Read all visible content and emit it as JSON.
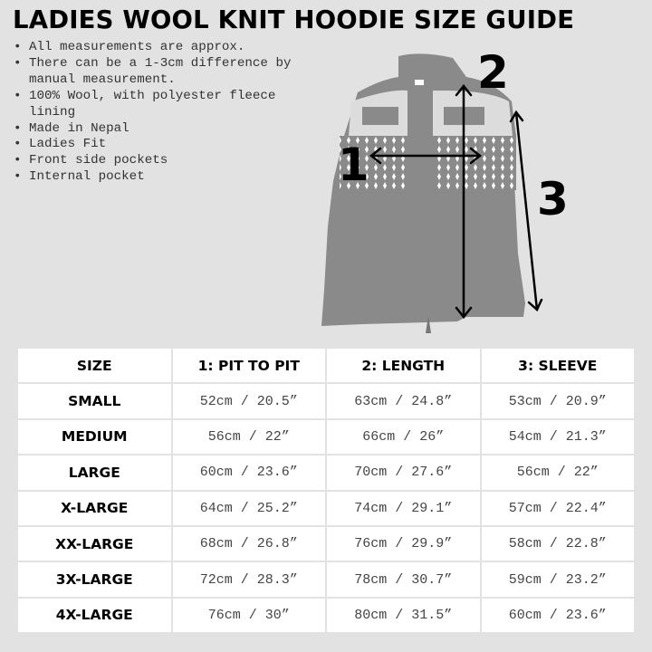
{
  "title": "LADIES WOOL KNIT HOODIE SIZE GUIDE",
  "notes": [
    "All measurements are approx.",
    "There can be a 1-3cm difference by manual measurement.",
    "100% Wool, with polyester fleece lining",
    "Made in Nepal",
    "Ladies Fit",
    "Front side pockets",
    "Internal pocket"
  ],
  "diagram": {
    "label_1": "1",
    "label_2": "2",
    "label_3": "3"
  },
  "table": {
    "headers": [
      "SIZE",
      "1: PIT TO PIT",
      "2: LENGTH",
      "3: SLEEVE"
    ],
    "rows": [
      [
        "SMALL",
        "52cm / 20.5”",
        "63cm / 24.8”",
        "53cm / 20.9”"
      ],
      [
        "MEDIUM",
        "56cm / 22”",
        "66cm / 26”",
        "54cm / 21.3”"
      ],
      [
        "LARGE",
        "60cm / 23.6”",
        "70cm / 27.6”",
        "56cm / 22”"
      ],
      [
        "X-LARGE",
        "64cm / 25.2”",
        "74cm / 29.1”",
        "57cm / 22.4”"
      ],
      [
        "XX-LARGE",
        "68cm / 26.8”",
        "76cm / 29.9”",
        "58cm / 22.8”"
      ],
      [
        "3X-LARGE",
        "72cm / 28.3”",
        "78cm / 30.7”",
        "59cm / 23.2”"
      ],
      [
        "4X-LARGE",
        "76cm / 30”",
        "80cm / 31.5”",
        "60cm / 23.6”"
      ]
    ]
  }
}
